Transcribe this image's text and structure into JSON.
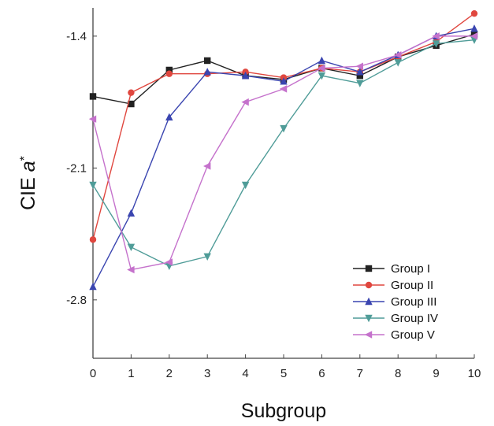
{
  "chart_data": {
    "type": "line",
    "title": "",
    "xlabel": "Subgroup",
    "ylabel_prefix": "CIE ",
    "ylabel_var": "a",
    "ylabel_sup": "*",
    "x": [
      0,
      1,
      2,
      3,
      4,
      5,
      6,
      7,
      8,
      9,
      10
    ],
    "xlim": [
      0,
      10
    ],
    "ylim": [
      -3.11,
      -1.25
    ],
    "xticks": [
      "0",
      "1",
      "2",
      "3",
      "4",
      "5",
      "6",
      "7",
      "8",
      "9",
      "10"
    ],
    "yticks": [
      {
        "value": -1.4,
        "label": "-1.4"
      },
      {
        "value": -2.1,
        "label": "-2.1"
      },
      {
        "value": -2.8,
        "label": "-2.8"
      }
    ],
    "grid": false,
    "legend_position": "bottom-right",
    "series": [
      {
        "name": "Group I",
        "color": "#222222",
        "marker": "square",
        "values": [
          -1.72,
          -1.76,
          -1.58,
          -1.53,
          -1.61,
          -1.63,
          -1.57,
          -1.61,
          -1.51,
          -1.45,
          -1.39
        ]
      },
      {
        "name": "Group II",
        "color": "#e0473f",
        "marker": "circle",
        "values": [
          -2.48,
          -1.7,
          -1.6,
          -1.6,
          -1.59,
          -1.62,
          -1.57,
          -1.59,
          -1.51,
          -1.43,
          -1.28
        ]
      },
      {
        "name": "Group III",
        "color": "#3a45b0",
        "marker": "triangle-up",
        "values": [
          -2.73,
          -2.34,
          -1.83,
          -1.59,
          -1.61,
          -1.64,
          -1.53,
          -1.59,
          -1.5,
          -1.4,
          -1.36
        ]
      },
      {
        "name": "Group IV",
        "color": "#4f9c98",
        "marker": "triangle-down",
        "values": [
          -2.19,
          -2.52,
          -2.62,
          -2.57,
          -2.19,
          -1.89,
          -1.61,
          -1.65,
          -1.54,
          -1.44,
          -1.42
        ]
      },
      {
        "name": "Group V",
        "color": "#c572cc",
        "marker": "triangle-left",
        "values": [
          -1.84,
          -2.64,
          -2.6,
          -2.09,
          -1.75,
          -1.68,
          -1.57,
          -1.56,
          -1.5,
          -1.4,
          -1.4
        ]
      }
    ]
  }
}
